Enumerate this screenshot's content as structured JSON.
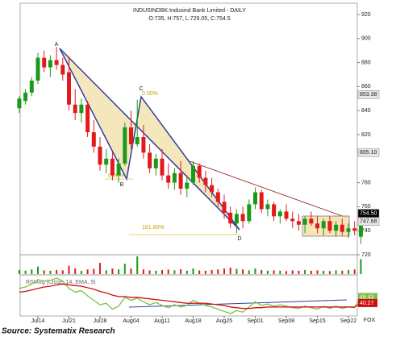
{
  "chart_data": {
    "type": "candlestick",
    "title": "INDUSINDBK:Indusind Bank Limited - DAILY",
    "subtitle": "O:735, H:757, L:729.05, C:754.5",
    "categories": [
      null,
      null,
      null,
      "Jul14",
      null,
      null,
      null,
      null,
      "Jul21",
      null,
      null,
      null,
      null,
      "Jul28",
      null,
      null,
      null,
      null,
      "Aug04",
      null,
      null,
      null,
      null,
      "Aug11",
      null,
      null,
      null,
      null,
      "Aug18",
      null,
      null,
      null,
      null,
      "Aug25",
      null,
      null,
      null,
      null,
      "Sep01",
      null,
      null,
      null,
      null,
      "Sep08",
      null,
      null,
      null,
      null,
      "Sep15",
      null,
      null,
      null,
      null,
      "Sep22",
      null,
      null
    ],
    "open": [
      842,
      848,
      855,
      865,
      884,
      876,
      882,
      878,
      872,
      845,
      838,
      845,
      822,
      810,
      795,
      800,
      786,
      796,
      826,
      812,
      818,
      805,
      792,
      800,
      786,
      780,
      788,
      775,
      780,
      794,
      784,
      778,
      772,
      764,
      755,
      746,
      754,
      748,
      762,
      772,
      758,
      762,
      752,
      756,
      750,
      748,
      745,
      750,
      746,
      742,
      748,
      740,
      745,
      739,
      742,
      735
    ],
    "high": [
      852,
      858,
      868,
      888,
      890,
      886,
      893,
      884,
      885,
      858,
      850,
      848,
      832,
      818,
      808,
      805,
      800,
      830,
      840,
      849,
      828,
      812,
      804,
      808,
      796,
      792,
      798,
      786,
      798,
      796,
      790,
      784,
      775,
      770,
      760,
      758,
      760,
      766,
      776,
      774,
      766,
      764,
      758,
      762,
      756,
      754,
      752,
      756,
      752,
      750,
      752,
      748,
      750,
      746,
      748,
      757
    ],
    "low": [
      838,
      845,
      852,
      862,
      872,
      868,
      874,
      865,
      840,
      832,
      830,
      818,
      805,
      790,
      788,
      782,
      780,
      794,
      808,
      810,
      800,
      788,
      786,
      782,
      775,
      774,
      770,
      768,
      778,
      780,
      772,
      768,
      760,
      750,
      742,
      738,
      742,
      746,
      758,
      755,
      752,
      748,
      746,
      748,
      742,
      740,
      738,
      744,
      738,
      736,
      738,
      735,
      736,
      734,
      736,
      729.05
    ],
    "close": [
      850,
      855,
      865,
      884,
      876,
      882,
      878,
      870,
      845,
      838,
      845,
      822,
      810,
      795,
      800,
      786,
      796,
      826,
      812,
      818,
      805,
      792,
      800,
      786,
      780,
      788,
      775,
      780,
      794,
      784,
      778,
      772,
      764,
      755,
      746,
      754,
      748,
      762,
      772,
      758,
      762,
      752,
      756,
      750,
      748,
      745,
      750,
      746,
      742,
      748,
      740,
      745,
      739,
      742,
      740,
      754.5
    ],
    "up_color": "#1a9a1a",
    "down_color": "#e31a1c",
    "ylim": [
      720,
      926.7
    ],
    "yticks": [
      720,
      740,
      760,
      780,
      820,
      840,
      860,
      880,
      900,
      920
    ],
    "price_markers": [
      853.38,
      {
        "value": 805.1,
        "label": "805.10"
      },
      {
        "value": 754.5,
        "label": "754.50"
      },
      747.68
    ],
    "price_marker_fills": [
      "#e6e6e6",
      "#e6e6e6",
      "#000000",
      "#e6e6e6"
    ],
    "volume": [
      22,
      18,
      25,
      40,
      20,
      18,
      22,
      20,
      45,
      30,
      18,
      25,
      28,
      60,
      20,
      30,
      25,
      55,
      30,
      95,
      25,
      20,
      18,
      22,
      24,
      20,
      26,
      18,
      30,
      20,
      18,
      22,
      25,
      30,
      35,
      28,
      25,
      20,
      30,
      22,
      18,
      20,
      18,
      16,
      20,
      18,
      22,
      18,
      20,
      18,
      16,
      20,
      18,
      22,
      25,
      80
    ],
    "rsi": {
      "name": "RSIAvg (Close, 14, EMA, 9)",
      "values": [
        60,
        62,
        66,
        72,
        70,
        71,
        74,
        70,
        60,
        55,
        57,
        50,
        44,
        38,
        40,
        32,
        36,
        48,
        44,
        47,
        42,
        38,
        41,
        37,
        34,
        38,
        35,
        37,
        44,
        40,
        37,
        35,
        32,
        29,
        26,
        30,
        28,
        35,
        42,
        37,
        39,
        36,
        38,
        36,
        34,
        33,
        36,
        34,
        32,
        36,
        33,
        36,
        33,
        35,
        34,
        48.43
      ],
      "avg": [
        55,
        56,
        58,
        60,
        62,
        63,
        65,
        66,
        65,
        64,
        63,
        61,
        59,
        56,
        54,
        51,
        49,
        49,
        48,
        48,
        47,
        46,
        45,
        44,
        43,
        42,
        41,
        40,
        40,
        40,
        40,
        39,
        38,
        37,
        35,
        34,
        33,
        33,
        34,
        34,
        35,
        35,
        35,
        35,
        35,
        35,
        35,
        35,
        35,
        35,
        35,
        35,
        35,
        35,
        35,
        40.27
      ],
      "color": "#7cc043",
      "avg_color": "#d01010"
    },
    "annotations": {
      "points": [
        "A",
        "B",
        "C",
        "D"
      ],
      "levels": [
        "0.00%",
        "0.00%",
        "161.80%"
      ]
    },
    "watermark": "FOX"
  },
  "footer": {
    "source": "Source: Systematix Research"
  }
}
